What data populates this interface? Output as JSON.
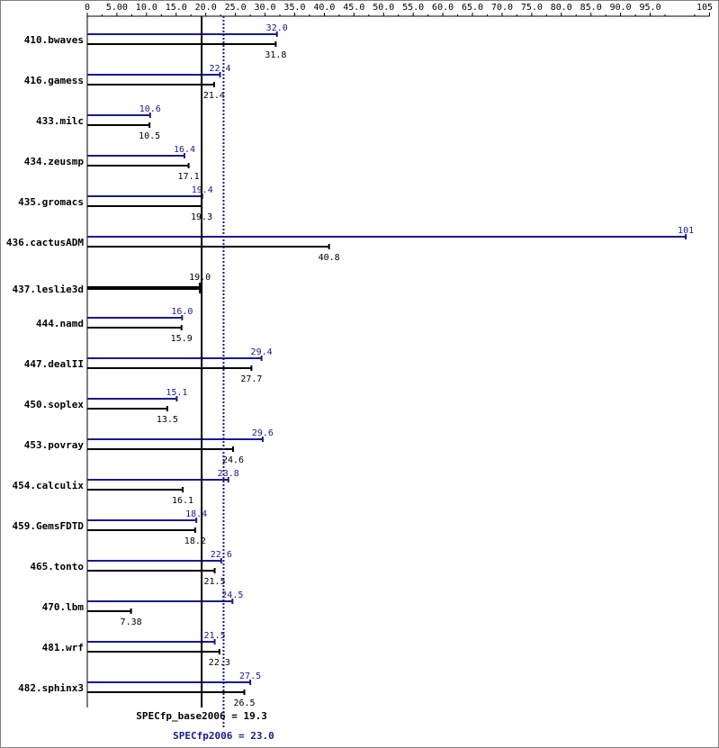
{
  "chart_data": {
    "type": "bar",
    "orientation": "horizontal",
    "x_ticks": [
      "0",
      "5.00",
      "10.0",
      "15.0",
      "20.0",
      "25.0",
      "30.0",
      "35.0",
      "40.0",
      "45.0",
      "50.0",
      "55.0",
      "60.0",
      "65.0",
      "70.0",
      "75.0",
      "80.0",
      "85.0",
      "90.0",
      "95.0",
      "105"
    ],
    "x_tick_values": [
      0,
      5,
      10,
      15,
      20,
      25,
      30,
      35,
      40,
      45,
      50,
      55,
      60,
      65,
      70,
      75,
      80,
      85,
      90,
      95,
      105
    ],
    "xlim": [
      0,
      105
    ],
    "categories": [
      "410.bwaves",
      "416.gamess",
      "433.milc",
      "434.zeusmp",
      "435.gromacs",
      "436.cactusADM",
      "437.leslie3d",
      "444.namd",
      "447.dealII",
      "450.soplex",
      "453.povray",
      "454.calculix",
      "459.GemsFDTD",
      "465.tonto",
      "470.lbm",
      "481.wrf",
      "482.sphinx3"
    ],
    "series": [
      {
        "key": "peak",
        "color": "#1a1a8c",
        "values": [
          32.0,
          22.4,
          10.6,
          16.4,
          19.4,
          101,
          null,
          16.0,
          29.4,
          15.1,
          29.6,
          23.8,
          18.4,
          22.6,
          24.5,
          21.5,
          27.5
        ],
        "labels": [
          "32.0",
          "22.4",
          "10.6",
          "16.4",
          "19.4",
          "101",
          "",
          "16.0",
          "29.4",
          "15.1",
          "29.6",
          "23.8",
          "18.4",
          "22.6",
          "24.5",
          "21.5",
          "27.5"
        ]
      },
      {
        "key": "base",
        "color": "#000000",
        "values": [
          31.8,
          21.4,
          10.5,
          17.1,
          19.3,
          40.8,
          19.0,
          15.9,
          27.7,
          13.5,
          24.6,
          16.1,
          18.2,
          21.5,
          7.38,
          22.3,
          26.5
        ],
        "labels": [
          "31.8",
          "21.4",
          "10.5",
          "17.1",
          "19.3",
          "40.8",
          "19.0",
          "15.9",
          "27.7",
          "13.5",
          "24.6",
          "16.1",
          "18.2",
          "21.5",
          "7.38",
          "22.3",
          "26.5"
        ]
      }
    ],
    "reference_lines": [
      {
        "key": "base",
        "label": "SPECfp_base2006 = 19.3",
        "value": 19.3,
        "style": "solid",
        "color": "#000000"
      },
      {
        "key": "peak",
        "label": "SPECfp2006 = 23.0",
        "value": 23.0,
        "style": "dotted",
        "color": "#1a1a8c"
      }
    ]
  }
}
